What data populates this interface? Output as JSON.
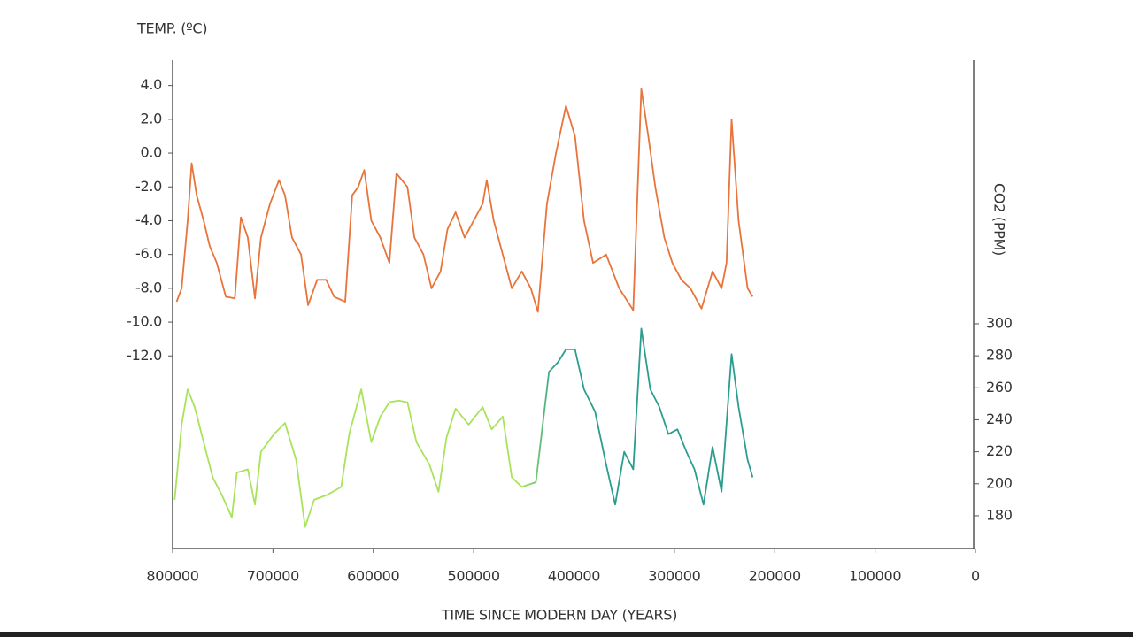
{
  "chart_data": {
    "type": "line",
    "ylabel": "TEMP. (ºC)",
    "y2label": "CO2 (PPM)",
    "xlabel": "TIME SINCE MODERN DAY (YEARS)",
    "xlim": [
      800000,
      0
    ],
    "xticks": [
      800000,
      700000,
      600000,
      500000,
      400000,
      300000,
      200000,
      100000,
      0
    ],
    "ylim": [
      -23.4,
      5.5
    ],
    "yticks": [
      {
        "value": 4,
        "label": "4.0"
      },
      {
        "value": 2,
        "label": "2.0"
      },
      {
        "value": 0,
        "label": "0.0"
      },
      {
        "value": -2,
        "label": "-2.0"
      },
      {
        "value": -4,
        "label": "-4.0"
      },
      {
        "value": -6,
        "label": "-6.0"
      },
      {
        "value": -8,
        "label": "-8.0"
      },
      {
        "value": -10,
        "label": "-10.0"
      },
      {
        "value": -12,
        "label": "-12.0"
      }
    ],
    "y2lim": [
      159.5,
      464.8
    ],
    "y2ticks": [
      300,
      280,
      260,
      240,
      220,
      200,
      180
    ],
    "series": [
      {
        "color": "#e8743b",
        "axis": "y",
        "x": [
          796000,
          791000,
          785000,
          781000,
          776000,
          769000,
          763000,
          756000,
          747000,
          738000,
          732000,
          725000,
          718000,
          712000,
          703000,
          694000,
          688000,
          681000,
          672000,
          665000,
          656000,
          647000,
          639000,
          628000,
          621000,
          615000,
          609000,
          602000,
          593000,
          584000,
          577000,
          566000,
          559000,
          550000,
          542000,
          533000,
          526000,
          518000,
          509000,
          500000,
          491000,
          487000,
          480000,
          471000,
          462000,
          452000,
          443000,
          436000,
          427000,
          418000,
          408000,
          399000,
          390000,
          381000,
          368000,
          355000,
          341000,
          333000,
          326000,
          319000,
          310000,
          302000,
          293000,
          284000,
          273000,
          262000,
          253000,
          248000,
          243000,
          236000,
          227000,
          222000
        ],
        "values": [
          -8.8,
          -8.0,
          -4.0,
          -0.6,
          -2.5,
          -4.0,
          -5.5,
          -6.5,
          -8.5,
          -8.6,
          -3.8,
          -5.0,
          -8.6,
          -5.0,
          -3.0,
          -1.6,
          -2.5,
          -5.0,
          -6.0,
          -9.0,
          -7.5,
          -7.5,
          -8.5,
          -8.8,
          -2.5,
          -2.0,
          -1.0,
          -4.0,
          -5.0,
          -6.5,
          -1.2,
          -2.0,
          -5.0,
          -6.0,
          -8.0,
          -7.0,
          -4.5,
          -3.5,
          -5.0,
          -4.0,
          -3.0,
          -1.6,
          -4.0,
          -6.0,
          -8.0,
          -7.0,
          -8.0,
          -9.4,
          -3.0,
          0.0,
          2.8,
          1.0,
          -4.0,
          -6.5,
          -6.0,
          -8.0,
          -9.3,
          3.8,
          1.0,
          -2.0,
          -5.0,
          -6.5,
          -7.5,
          -8.0,
          -9.2,
          -7.0,
          -8.0,
          -6.5,
          2.0,
          -4.0,
          -8.0,
          -8.5
        ]
      },
      {
        "color": [
          "#a8e35b",
          "#2a9d8f"
        ],
        "axis": "y2",
        "x": [
          798000,
          791000,
          785000,
          778000,
          769000,
          760000,
          751000,
          741000,
          736000,
          725000,
          718000,
          712000,
          699000,
          688000,
          677000,
          668000,
          659000,
          646000,
          632000,
          624000,
          612000,
          602000,
          593000,
          584000,
          575000,
          566000,
          557000,
          544000,
          535000,
          527000,
          518000,
          505000,
          491000,
          482000,
          471000,
          462000,
          452000,
          438000,
          425000,
          416000,
          408000,
          399000,
          390000,
          379000,
          368000,
          359000,
          350000,
          341000,
          333000,
          324000,
          315000,
          306000,
          297000,
          288000,
          280000,
          271000,
          262000,
          253000,
          243000,
          236000,
          227000,
          222000
        ],
        "values": [
          190,
          237,
          259,
          248,
          226,
          204,
          193,
          179,
          207,
          209,
          187,
          220,
          231,
          238,
          215,
          173,
          190,
          193,
          198,
          231,
          259,
          226,
          242,
          251,
          252,
          251,
          226,
          212,
          195,
          229,
          247,
          237,
          248,
          234,
          242,
          204,
          198,
          201,
          270,
          276,
          284,
          284,
          259,
          245,
          212,
          187,
          220,
          209,
          297,
          259,
          248,
          231,
          234,
          220,
          209,
          187,
          223,
          195,
          281,
          248,
          215,
          204
        ]
      }
    ]
  }
}
